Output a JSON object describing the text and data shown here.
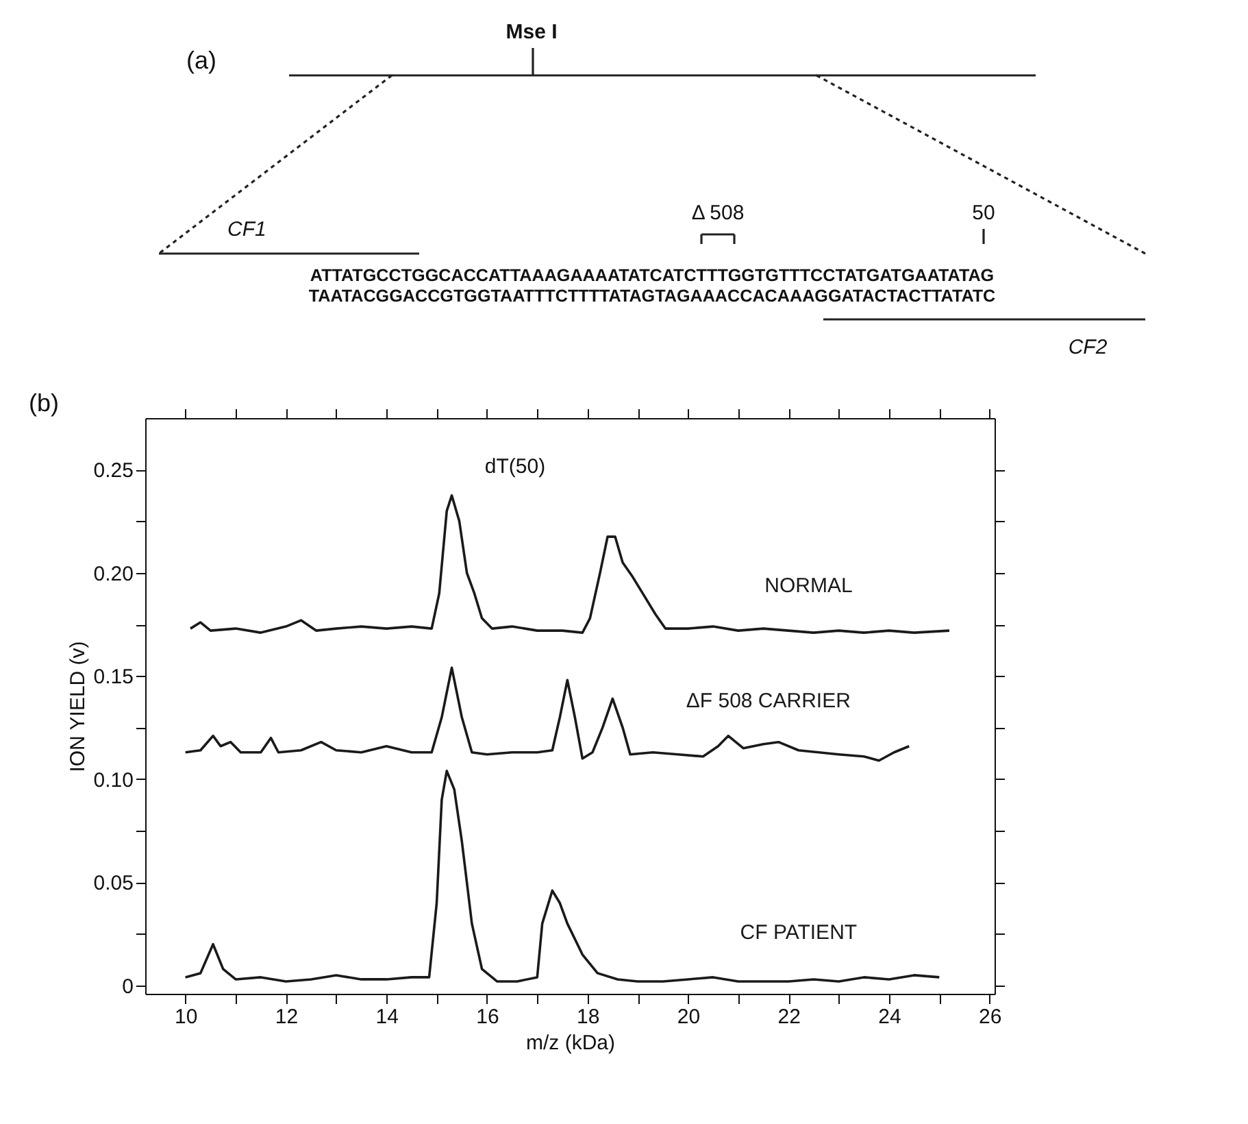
{
  "chart_data": [
    {
      "type": "other",
      "annotations": [
        "(a)",
        "Mse I",
        "CF1",
        "Δ 508",
        "50",
        "ATTATGCCTGGCACCATTAAAGAAAATATCATCTTTGGTGTTTCCTATGATGAATATAG",
        "TAATACGGACCGTGGTAATTTCTTTTATAGTAGAAACCACAAAGGATACTACTTATATC",
        "CF2"
      ]
    },
    {
      "type": "line",
      "xlabel": "m/z (kDa)",
      "ylabel": "ION YIELD (v)",
      "annotations": [
        "(b)",
        "dT(50)"
      ],
      "xlim": [
        9.2,
        26.1
      ],
      "ylim": [
        -0.004,
        0.275
      ],
      "xticks": [
        10,
        {
          "value": 11,
          "label": null
        },
        12,
        {
          "value": 13,
          "label": null
        },
        14,
        {
          "value": 15,
          "label": null
        },
        16,
        {
          "value": 17,
          "label": null
        },
        18,
        {
          "value": 19,
          "label": null
        },
        20,
        {
          "value": 21,
          "label": null
        },
        22,
        {
          "value": 23,
          "label": null
        },
        24,
        {
          "value": 25,
          "label": null
        },
        26
      ],
      "yticks": [
        0,
        {
          "value": 0.025,
          "label": null
        },
        0.05,
        {
          "value": 0.075,
          "label": null
        },
        {
          "value": 0.1,
          "label": "0.10"
        },
        {
          "value": 0.125,
          "label": null
        },
        0.15,
        {
          "value": 0.175,
          "label": null
        },
        {
          "value": 0.2,
          "label": "0.20"
        },
        {
          "value": 0.225,
          "label": null
        },
        0.25
      ],
      "grid": false,
      "marker": "none",
      "line_style": "solid",
      "series": [
        {
          "name": "NORMAL",
          "color": "#1a1a1a",
          "x": [
            10.1,
            10.3,
            10.5,
            11,
            11.5,
            12,
            12.3,
            12.6,
            13,
            13.5,
            14,
            14.5,
            14.9,
            15.05,
            15.2,
            15.3,
            15.45,
            15.6,
            15.75,
            15.9,
            16.1,
            16.5,
            17,
            17.5,
            17.9,
            18.05,
            18.25,
            18.4,
            18.55,
            18.7,
            18.9,
            19.1,
            19.35,
            19.55,
            20,
            20.5,
            21,
            21.5,
            22,
            22.5,
            23,
            23.5,
            24,
            24.5,
            25.2
          ],
          "values": [
            0.173,
            0.176,
            0.172,
            0.173,
            0.171,
            0.174,
            0.177,
            0.172,
            0.173,
            0.174,
            0.173,
            0.174,
            0.173,
            0.19,
            0.23,
            0.2375,
            0.225,
            0.2,
            0.19,
            0.178,
            0.173,
            0.174,
            0.172,
            0.172,
            0.171,
            0.178,
            0.2,
            0.2175,
            0.2175,
            0.205,
            0.198,
            0.19,
            0.18,
            0.173,
            0.173,
            0.174,
            0.172,
            0.173,
            0.172,
            0.171,
            0.172,
            0.171,
            0.172,
            0.171,
            0.172
          ]
        },
        {
          "name": "ΔF 508 CARRIER",
          "color": "#1a1a1a",
          "x": [
            10,
            10.3,
            10.55,
            10.7,
            10.9,
            11.1,
            11.5,
            11.7,
            11.85,
            12.3,
            12.7,
            13,
            13.5,
            14,
            14.5,
            14.9,
            15.1,
            15.3,
            15.5,
            15.7,
            16,
            16.5,
            17,
            17.3,
            17.45,
            17.6,
            17.75,
            17.9,
            18.1,
            18.3,
            18.5,
            18.7,
            18.85,
            19.3,
            19.8,
            20.3,
            20.6,
            20.8,
            21.1,
            21.5,
            21.8,
            22.2,
            22.6,
            23,
            23.5,
            23.8,
            24.1,
            24.4
          ],
          "values": [
            0.113,
            0.114,
            0.121,
            0.116,
            0.118,
            0.113,
            0.113,
            0.12,
            0.113,
            0.114,
            0.118,
            0.114,
            0.113,
            0.116,
            0.113,
            0.113,
            0.13,
            0.154,
            0.13,
            0.113,
            0.112,
            0.113,
            0.113,
            0.114,
            0.13,
            0.148,
            0.13,
            0.11,
            0.113,
            0.125,
            0.139,
            0.125,
            0.112,
            0.113,
            0.112,
            0.111,
            0.116,
            0.121,
            0.115,
            0.117,
            0.118,
            0.114,
            0.113,
            0.112,
            0.111,
            0.109,
            0.113,
            0.116
          ]
        },
        {
          "name": "CF  PATIENT",
          "color": "#1a1a1a",
          "x": [
            10,
            10.3,
            10.55,
            10.75,
            11,
            11.5,
            12,
            12.5,
            13,
            13.5,
            14,
            14.5,
            14.85,
            15.0,
            15.1,
            15.2,
            15.35,
            15.5,
            15.7,
            15.9,
            16.2,
            16.6,
            17.0,
            17.1,
            17.3,
            17.45,
            17.6,
            17.9,
            18.2,
            18.6,
            19,
            19.5,
            20,
            20.5,
            21,
            21.5,
            22,
            22.5,
            23,
            23.5,
            24,
            24.5,
            25
          ],
          "values": [
            0.004,
            0.006,
            0.02,
            0.008,
            0.003,
            0.004,
            0.002,
            0.003,
            0.005,
            0.003,
            0.003,
            0.004,
            0.004,
            0.04,
            0.09,
            0.104,
            0.095,
            0.07,
            0.03,
            0.008,
            0.002,
            0.002,
            0.004,
            0.03,
            0.046,
            0.04,
            0.03,
            0.015,
            0.006,
            0.003,
            0.002,
            0.002,
            0.003,
            0.004,
            0.002,
            0.002,
            0.002,
            0.003,
            0.002,
            0.004,
            0.003,
            0.005,
            0.004
          ]
        }
      ]
    }
  ]
}
